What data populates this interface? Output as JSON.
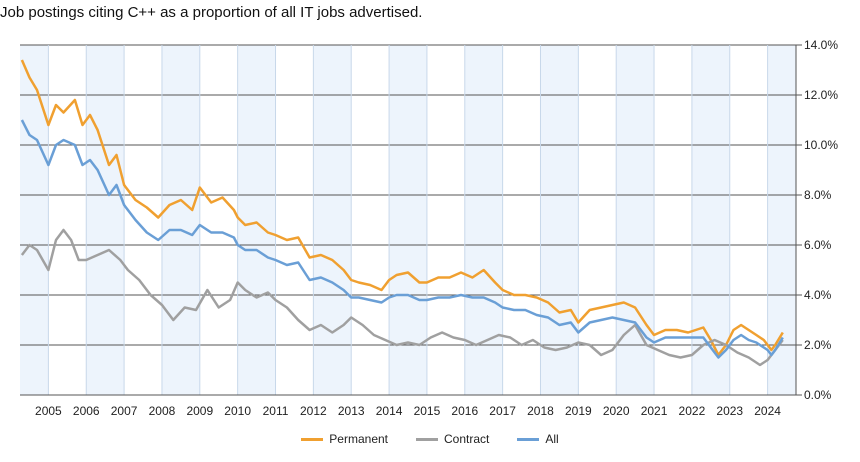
{
  "title": "Job postings citing C++ as a proportion of all IT jobs advertised.",
  "chart_data": {
    "type": "line",
    "title": "Job postings citing C++ as a proportion of all IT jobs advertised.",
    "x_range": [
      2004.25,
      2024.75
    ],
    "ylim": [
      0,
      14
    ],
    "y_axis_position": "right",
    "y_ticks": [
      "0.0%",
      "2.0%",
      "4.0%",
      "6.0%",
      "8.0%",
      "10.0%",
      "12.0%",
      "14.0%"
    ],
    "y_tick_values": [
      0,
      2,
      4,
      6,
      8,
      10,
      12,
      14
    ],
    "x_ticks": [
      "2005",
      "2006",
      "2007",
      "2008",
      "2009",
      "2010",
      "2011",
      "2012",
      "2013",
      "2014",
      "2015",
      "2016",
      "2017",
      "2018",
      "2019",
      "2020",
      "2021",
      "2022",
      "2023",
      "2024"
    ],
    "x_tick_values": [
      2005,
      2006,
      2007,
      2008,
      2009,
      2010,
      2011,
      2012,
      2013,
      2014,
      2015,
      2016,
      2017,
      2018,
      2019,
      2020,
      2021,
      2022,
      2023,
      2024
    ],
    "grid": true,
    "legend_position": "bottom",
    "series": [
      {
        "name": "Permanent",
        "color": "#f0a030",
        "x": [
          2004.3,
          2004.5,
          2004.7,
          2005.0,
          2005.2,
          2005.4,
          2005.7,
          2005.9,
          2006.1,
          2006.3,
          2006.6,
          2006.8,
          2007.0,
          2007.3,
          2007.6,
          2007.9,
          2008.2,
          2008.5,
          2008.8,
          2009.0,
          2009.3,
          2009.6,
          2009.9,
          2010.0,
          2010.2,
          2010.5,
          2010.8,
          2011.0,
          2011.3,
          2011.6,
          2011.9,
          2012.2,
          2012.5,
          2012.8,
          2013.0,
          2013.2,
          2013.5,
          2013.8,
          2014.0,
          2014.2,
          2014.5,
          2014.8,
          2015.0,
          2015.3,
          2015.6,
          2015.9,
          2016.2,
          2016.5,
          2016.8,
          2017.0,
          2017.3,
          2017.6,
          2017.9,
          2018.2,
          2018.5,
          2018.8,
          2019.0,
          2019.3,
          2019.6,
          2019.9,
          2020.2,
          2020.5,
          2020.8,
          2021.0,
          2021.3,
          2021.6,
          2021.9,
          2022.1,
          2022.3,
          2022.5,
          2022.7,
          2022.9,
          2023.1,
          2023.3,
          2023.5,
          2023.7,
          2023.9,
          2024.0,
          2024.1,
          2024.2,
          2024.4
        ],
        "y": [
          13.4,
          12.7,
          12.2,
          10.8,
          11.6,
          11.3,
          11.8,
          10.8,
          11.2,
          10.6,
          9.2,
          9.6,
          8.4,
          7.8,
          7.5,
          7.1,
          7.6,
          7.8,
          7.4,
          8.3,
          7.7,
          7.9,
          7.4,
          7.1,
          6.8,
          6.9,
          6.5,
          6.4,
          6.2,
          6.3,
          5.5,
          5.6,
          5.4,
          5.0,
          4.6,
          4.5,
          4.4,
          4.2,
          4.6,
          4.8,
          4.9,
          4.5,
          4.5,
          4.7,
          4.7,
          4.9,
          4.7,
          5.0,
          4.5,
          4.2,
          4.0,
          4.0,
          3.9,
          3.7,
          3.3,
          3.4,
          2.9,
          3.4,
          3.5,
          3.6,
          3.7,
          3.5,
          2.8,
          2.4,
          2.6,
          2.6,
          2.5,
          2.6,
          2.7,
          2.2,
          1.6,
          2.0,
          2.6,
          2.8,
          2.6,
          2.4,
          2.2,
          2.0,
          1.8,
          2.0,
          2.5
        ]
      },
      {
        "name": "Contract",
        "color": "#a0a0a0",
        "x": [
          2004.3,
          2004.5,
          2004.7,
          2005.0,
          2005.2,
          2005.4,
          2005.6,
          2005.8,
          2006.0,
          2006.3,
          2006.6,
          2006.9,
          2007.1,
          2007.4,
          2007.7,
          2008.0,
          2008.3,
          2008.6,
          2008.9,
          2009.2,
          2009.5,
          2009.8,
          2010.0,
          2010.2,
          2010.5,
          2010.8,
          2011.0,
          2011.3,
          2011.6,
          2011.9,
          2012.2,
          2012.5,
          2012.8,
          2013.0,
          2013.3,
          2013.6,
          2013.9,
          2014.2,
          2014.5,
          2014.8,
          2015.1,
          2015.4,
          2015.7,
          2016.0,
          2016.3,
          2016.6,
          2016.9,
          2017.2,
          2017.5,
          2017.8,
          2018.1,
          2018.4,
          2018.7,
          2019.0,
          2019.3,
          2019.6,
          2019.9,
          2020.2,
          2020.5,
          2020.8,
          2021.1,
          2021.4,
          2021.7,
          2022.0,
          2022.3,
          2022.6,
          2022.9,
          2023.2,
          2023.5,
          2023.8,
          2024.0,
          2024.2,
          2024.4
        ],
        "y": [
          5.6,
          6.0,
          5.8,
          5.0,
          6.2,
          6.6,
          6.2,
          5.4,
          5.4,
          5.6,
          5.8,
          5.4,
          5.0,
          4.6,
          4.0,
          3.6,
          3.0,
          3.5,
          3.4,
          4.2,
          3.5,
          3.8,
          4.5,
          4.2,
          3.9,
          4.1,
          3.8,
          3.5,
          3.0,
          2.6,
          2.8,
          2.5,
          2.8,
          3.1,
          2.8,
          2.4,
          2.2,
          2.0,
          2.1,
          2.0,
          2.3,
          2.5,
          2.3,
          2.2,
          2.0,
          2.2,
          2.4,
          2.3,
          2.0,
          2.2,
          1.9,
          1.8,
          1.9,
          2.1,
          2.0,
          1.6,
          1.8,
          2.4,
          2.8,
          2.0,
          1.8,
          1.6,
          1.5,
          1.6,
          2.0,
          2.2,
          2.0,
          1.7,
          1.5,
          1.2,
          1.4,
          1.8,
          2.2
        ]
      },
      {
        "name": "All",
        "color": "#6a9fd6",
        "x": [
          2004.3,
          2004.5,
          2004.7,
          2005.0,
          2005.2,
          2005.4,
          2005.7,
          2005.9,
          2006.1,
          2006.3,
          2006.6,
          2006.8,
          2007.0,
          2007.3,
          2007.6,
          2007.9,
          2008.2,
          2008.5,
          2008.8,
          2009.0,
          2009.3,
          2009.6,
          2009.9,
          2010.0,
          2010.2,
          2010.5,
          2010.8,
          2011.0,
          2011.3,
          2011.6,
          2011.9,
          2012.2,
          2012.5,
          2012.8,
          2013.0,
          2013.2,
          2013.5,
          2013.8,
          2014.0,
          2014.2,
          2014.5,
          2014.8,
          2015.0,
          2015.3,
          2015.6,
          2015.9,
          2016.2,
          2016.5,
          2016.8,
          2017.0,
          2017.3,
          2017.6,
          2017.9,
          2018.2,
          2018.5,
          2018.8,
          2019.0,
          2019.3,
          2019.6,
          2019.9,
          2020.2,
          2020.5,
          2020.8,
          2021.0,
          2021.3,
          2021.6,
          2021.9,
          2022.1,
          2022.3,
          2022.5,
          2022.7,
          2022.9,
          2023.1,
          2023.3,
          2023.5,
          2023.7,
          2023.9,
          2024.0,
          2024.1,
          2024.2,
          2024.4
        ],
        "y": [
          11.0,
          10.4,
          10.2,
          9.2,
          10.0,
          10.2,
          10.0,
          9.2,
          9.4,
          9.0,
          8.0,
          8.4,
          7.6,
          7.0,
          6.5,
          6.2,
          6.6,
          6.6,
          6.4,
          6.8,
          6.5,
          6.5,
          6.3,
          6.0,
          5.8,
          5.8,
          5.5,
          5.4,
          5.2,
          5.3,
          4.6,
          4.7,
          4.5,
          4.2,
          3.9,
          3.9,
          3.8,
          3.7,
          3.9,
          4.0,
          4.0,
          3.8,
          3.8,
          3.9,
          3.9,
          4.0,
          3.9,
          3.9,
          3.7,
          3.5,
          3.4,
          3.4,
          3.2,
          3.1,
          2.8,
          2.9,
          2.5,
          2.9,
          3.0,
          3.1,
          3.0,
          2.9,
          2.3,
          2.1,
          2.3,
          2.3,
          2.3,
          2.3,
          2.3,
          1.9,
          1.5,
          1.8,
          2.2,
          2.4,
          2.2,
          2.1,
          1.9,
          1.8,
          1.6,
          1.8,
          2.3
        ]
      }
    ]
  }
}
